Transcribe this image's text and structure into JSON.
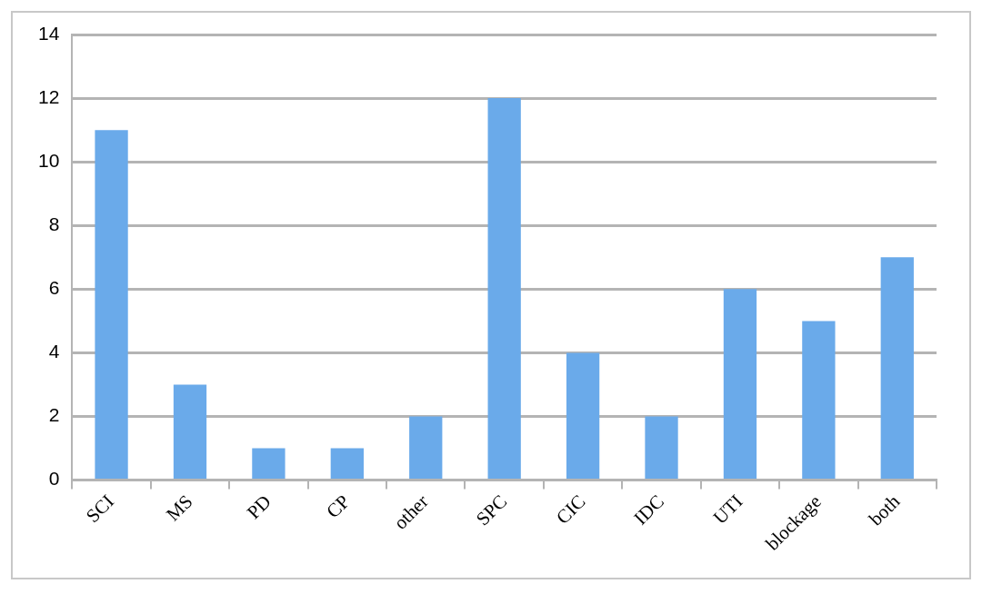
{
  "chart_data": {
    "type": "bar",
    "categories": [
      "SCI",
      "MS",
      "PD",
      "CP",
      "other",
      "SPC",
      "CIC",
      "IDC",
      "UTI",
      "blockage",
      "both"
    ],
    "values": [
      11,
      3,
      1,
      1,
      2,
      12,
      4,
      2,
      6,
      5,
      7
    ],
    "color": "#6aaaea",
    "ylim": [
      0,
      14
    ],
    "yticks": [
      0,
      2,
      4,
      6,
      8,
      10,
      12,
      14
    ],
    "grid": "y",
    "legend": false
  }
}
